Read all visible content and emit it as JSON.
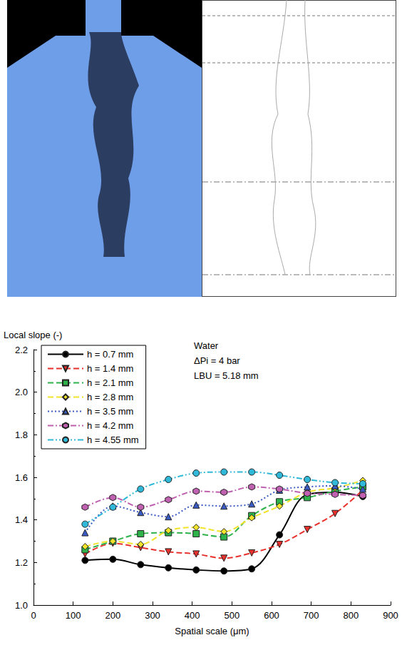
{
  "chart_data": {
    "type": "line",
    "x_label": "Spatial scale (μm)",
    "y_label": "Local slope (-)",
    "annotations": [
      "Water",
      "ΔPi = 4 bar",
      "LBU = 5.18 mm"
    ],
    "xlim": [
      0,
      900
    ],
    "xticks": [
      0,
      100,
      200,
      300,
      400,
      500,
      600,
      700,
      800,
      900
    ],
    "ylim": [
      1.0,
      2.2
    ],
    "yticks": [
      {
        "value": 1.0,
        "label": "1.0"
      },
      1.2,
      1.4,
      1.6,
      1.8,
      {
        "value": 2.0,
        "label": "2.0"
      },
      2.2
    ],
    "grid": false,
    "legend": "upper left",
    "x": [
      130,
      200,
      270,
      340,
      410,
      480,
      550,
      620,
      690,
      760,
      830
    ],
    "series": [
      {
        "name": "h = 0.7 mm",
        "color": "#000000",
        "marker": "circle",
        "line_style": "solid",
        "values": [
          1.21,
          1.215,
          1.19,
          1.175,
          1.165,
          1.16,
          1.17,
          1.33,
          1.52,
          1.53,
          1.51
        ]
      },
      {
        "name": "h = 1.4 mm",
        "color": "#e8312d",
        "marker": "triangle-down",
        "line_style": "dashed",
        "values": [
          1.24,
          1.29,
          1.27,
          1.25,
          1.24,
          1.22,
          1.245,
          1.285,
          1.355,
          1.43,
          1.54
        ]
      },
      {
        "name": "h = 2.1 mm",
        "color": "#2db34a",
        "marker": "square",
        "line_style": "dashed",
        "values": [
          1.26,
          1.3,
          1.335,
          1.34,
          1.335,
          1.32,
          1.42,
          1.485,
          1.505,
          1.535,
          1.555
        ]
      },
      {
        "name": "h = 2.8 mm",
        "color": "#f2e32b",
        "marker": "diamond",
        "line_style": "dashed",
        "values": [
          1.275,
          1.3,
          1.285,
          1.35,
          1.365,
          1.345,
          1.41,
          1.465,
          1.53,
          1.55,
          1.585
        ]
      },
      {
        "name": "h = 3.5 mm",
        "color": "#3b5bc4",
        "marker": "triangle",
        "line_style": "dotted",
        "values": [
          1.34,
          1.465,
          1.435,
          1.415,
          1.47,
          1.465,
          1.475,
          1.54,
          1.555,
          1.56,
          1.545
        ]
      },
      {
        "name": "h = 4.2 mm",
        "color": "#c060b0",
        "marker": "hexagon",
        "line_style": "dashdot",
        "values": [
          1.46,
          1.505,
          1.46,
          1.495,
          1.535,
          1.53,
          1.555,
          1.545,
          1.525,
          1.52,
          1.515
        ]
      },
      {
        "name": "h = 4.55 mm",
        "color": "#30b8d8",
        "marker": "circle",
        "line_style": "dashdotdot",
        "values": [
          1.38,
          1.46,
          1.545,
          1.59,
          1.62,
          1.625,
          1.625,
          1.61,
          1.59,
          1.575,
          1.57
        ]
      }
    ]
  }
}
